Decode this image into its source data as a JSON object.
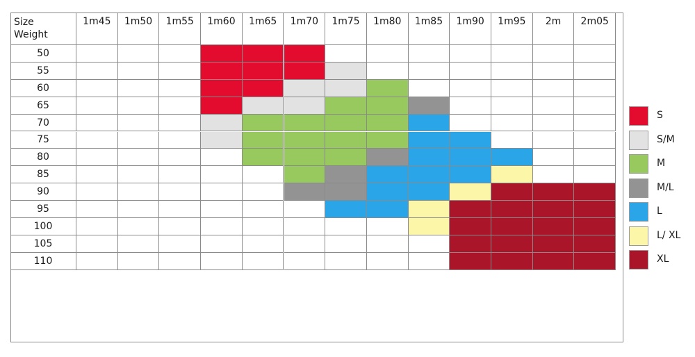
{
  "chart_data": {
    "type": "heatmap",
    "corner_label_top": "Size",
    "corner_label_bottom": "Weight",
    "columns": [
      "1m45",
      "1m50",
      "1m55",
      "1m60",
      "1m65",
      "1m70",
      "1m75",
      "1m80",
      "1m85",
      "1m90",
      "1m95",
      "2m",
      "2m05"
    ],
    "rows": [
      "50",
      "55",
      "60",
      "65",
      "70",
      "75",
      "80",
      "85",
      "90",
      "95",
      "100",
      "105",
      "110"
    ],
    "cells": [
      [
        "",
        "",
        "",
        "S",
        "S",
        "S",
        "",
        "",
        "",
        "",
        "",
        "",
        ""
      ],
      [
        "",
        "",
        "",
        "S",
        "S",
        "S",
        "S/M",
        "",
        "",
        "",
        "",
        "",
        ""
      ],
      [
        "",
        "",
        "",
        "S",
        "S",
        "S/M",
        "S/M",
        "M",
        "",
        "",
        "",
        "",
        ""
      ],
      [
        "",
        "",
        "",
        "S",
        "S/M",
        "S/M",
        "M",
        "M",
        "M/L",
        "",
        "",
        "",
        ""
      ],
      [
        "",
        "",
        "",
        "S/M",
        "M",
        "M",
        "M",
        "M",
        "L",
        "",
        "",
        "",
        ""
      ],
      [
        "",
        "",
        "",
        "S/M",
        "M",
        "M",
        "M",
        "M",
        "L",
        "L",
        "",
        "",
        ""
      ],
      [
        "",
        "",
        "",
        "",
        "M",
        "M",
        "M",
        "M/L",
        "L",
        "L",
        "L",
        "",
        ""
      ],
      [
        "",
        "",
        "",
        "",
        "",
        "M",
        "M/L",
        "L",
        "L",
        "L",
        "L/ XL",
        "",
        ""
      ],
      [
        "",
        "",
        "",
        "",
        "",
        "M/L",
        "M/L",
        "L",
        "L",
        "L/ XL",
        "XL",
        "XL",
        "XL"
      ],
      [
        "",
        "",
        "",
        "",
        "",
        "",
        "L",
        "L",
        "L/ XL",
        "XL",
        "XL",
        "XL",
        "XL"
      ],
      [
        "",
        "",
        "",
        "",
        "",
        "",
        "",
        "",
        "L/ XL",
        "XL",
        "XL",
        "XL",
        "XL"
      ],
      [
        "",
        "",
        "",
        "",
        "",
        "",
        "",
        "",
        "",
        "XL",
        "XL",
        "XL",
        "XL"
      ],
      [
        "",
        "",
        "",
        "",
        "",
        "",
        "",
        "",
        "",
        "XL",
        "XL",
        "XL",
        "XL"
      ]
    ],
    "legend": [
      {
        "label": "S",
        "color": "#e30b2e"
      },
      {
        "label": "S/M",
        "color": "#e2e2e2"
      },
      {
        "label": "M",
        "color": "#98c95e"
      },
      {
        "label": "M/L",
        "color": "#939393"
      },
      {
        "label": "L",
        "color": "#2aa6e8"
      },
      {
        "label": "L/ XL",
        "color": "#fcf6a8"
      },
      {
        "label": "XL",
        "color": "#ab1529"
      }
    ]
  }
}
